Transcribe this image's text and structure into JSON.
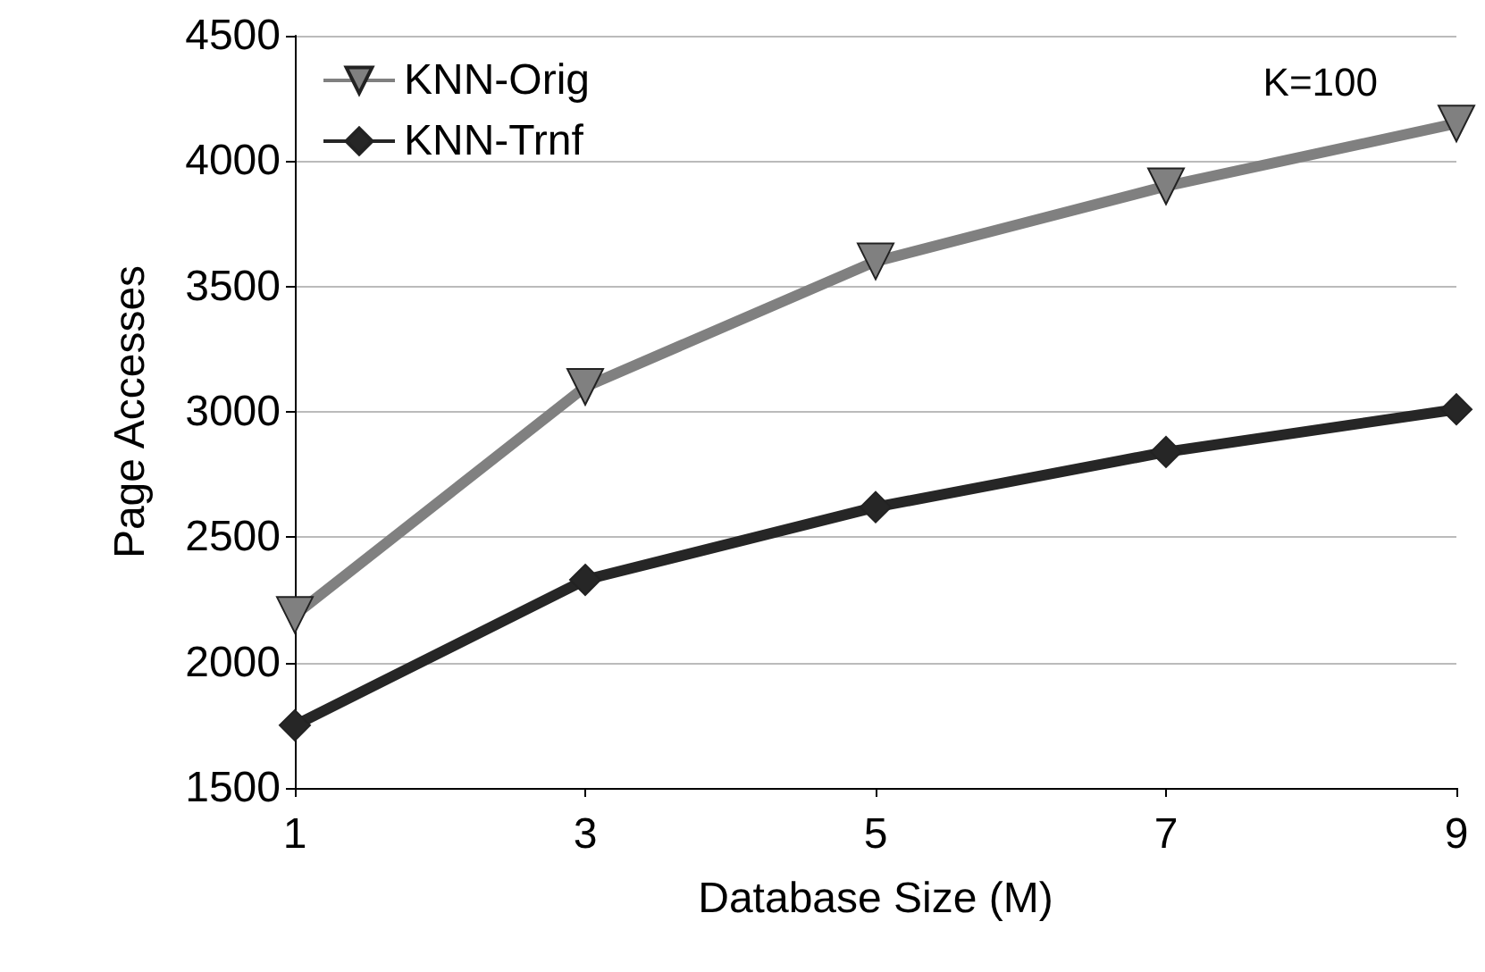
{
  "chart_data": {
    "type": "line",
    "xlabel": "Database Size (M)",
    "ylabel": "Page Accesses",
    "x": [
      1,
      3,
      5,
      7,
      9
    ],
    "xlim": [
      1,
      9
    ],
    "xticks": [
      1,
      3,
      5,
      7,
      9
    ],
    "ylim": [
      1500,
      4500
    ],
    "yticks": [
      1500,
      2000,
      2500,
      3000,
      3500,
      4000,
      4500
    ],
    "grid": "y",
    "legend": "top left",
    "annotations": [
      "K=100"
    ],
    "series": [
      {
        "name": "KNN-Orig",
        "color": "#808080",
        "marker": "triangle",
        "values": [
          2190,
          3100,
          3600,
          3900,
          4150
        ]
      },
      {
        "name": "KNN-Trnf",
        "color": "#262626",
        "marker": "diamond",
        "values": [
          1750,
          2330,
          2620,
          2840,
          3010
        ]
      }
    ]
  }
}
